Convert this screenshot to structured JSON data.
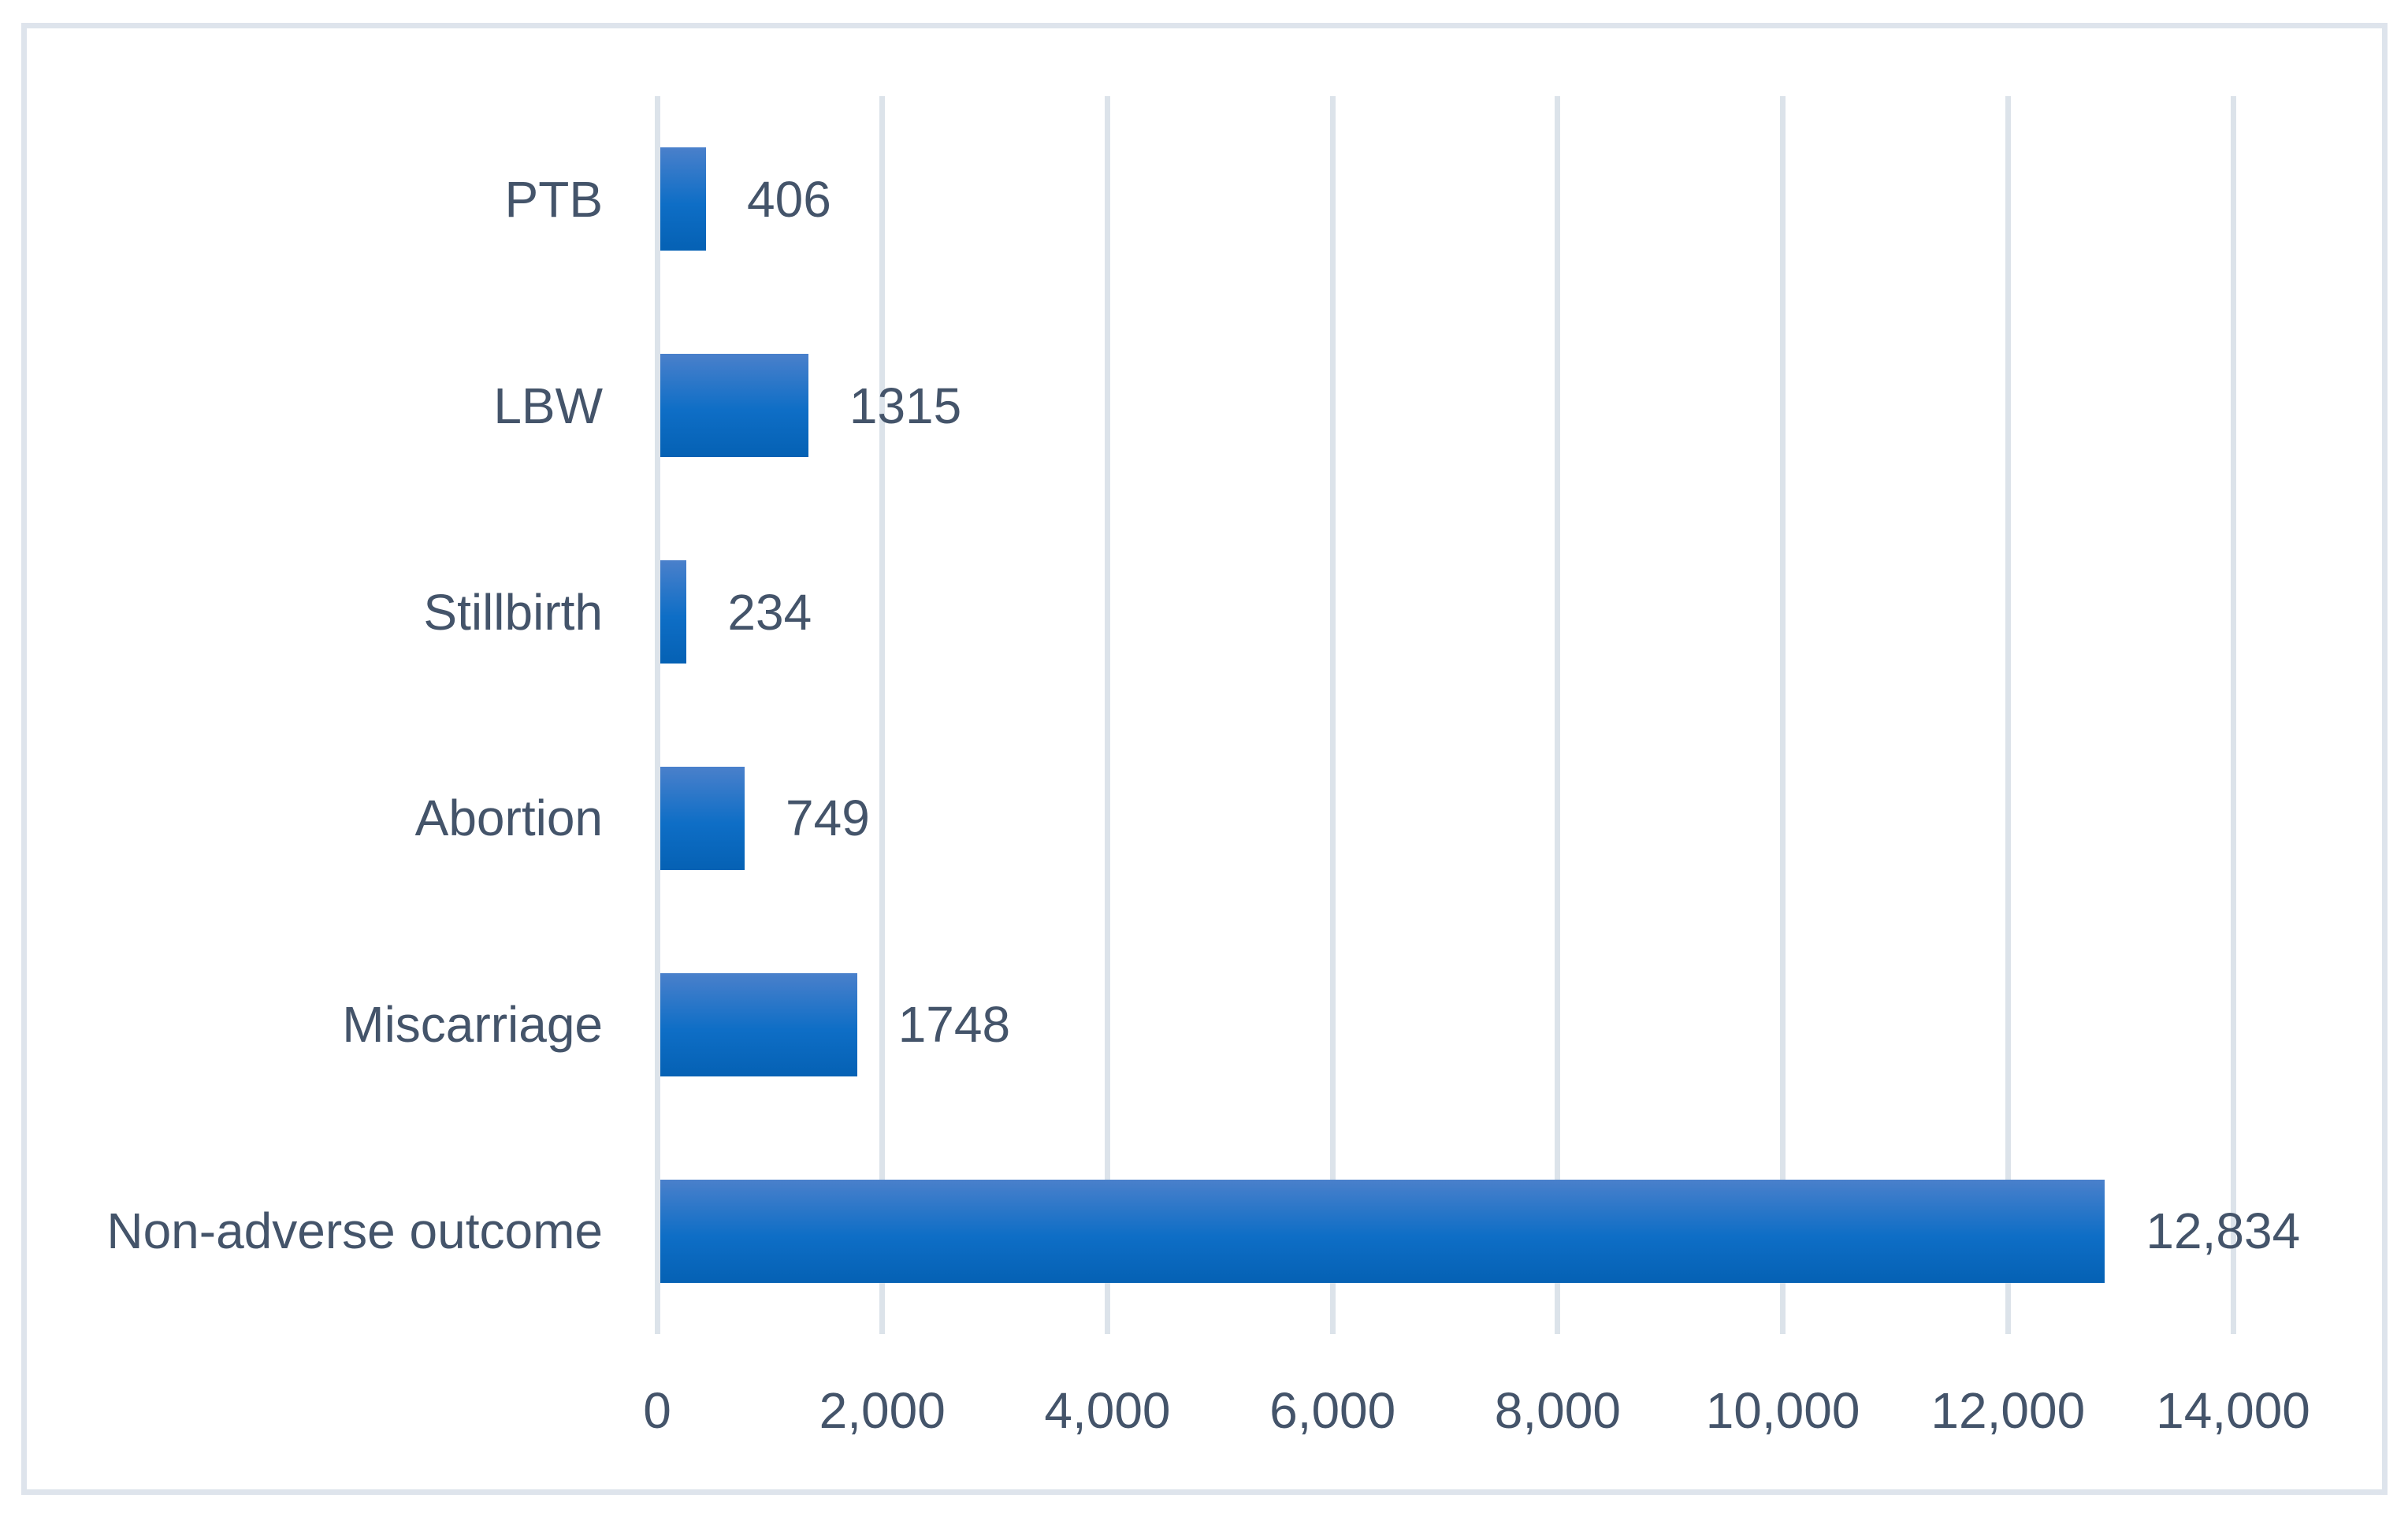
{
  "chart_data": {
    "type": "bar",
    "orientation": "horizontal",
    "title": "",
    "xlabel": "",
    "ylabel": "",
    "categories": [
      "PTB",
      "LBW",
      "Stillbirth",
      "Abortion",
      "Miscarriage",
      "Non-adverse outcome"
    ],
    "values": [
      406,
      1315,
      234,
      749,
      1748,
      12834
    ],
    "value_labels": [
      "406",
      "1315",
      "234",
      "749",
      "1748",
      "12,834"
    ],
    "x_ticks": [
      0,
      2000,
      4000,
      6000,
      8000,
      10000,
      12000,
      14000
    ],
    "x_tick_labels": [
      "0",
      "2,000",
      "4,000",
      "6,000",
      "8,000",
      "10,000",
      "12,000",
      "14,000"
    ],
    "xlim": [
      0,
      14000
    ],
    "grid": "vertical",
    "legend": "none",
    "colors": {
      "bar_gradient_top": "#4a80cb",
      "bar_gradient_mid": "#0e6ec6",
      "bar_gradient_bottom": "#0561b4",
      "text_color": "#44546a",
      "gridline_color": "#dce3ea",
      "frame_border_color": "#dee4ec",
      "background": "#ffffff"
    }
  }
}
